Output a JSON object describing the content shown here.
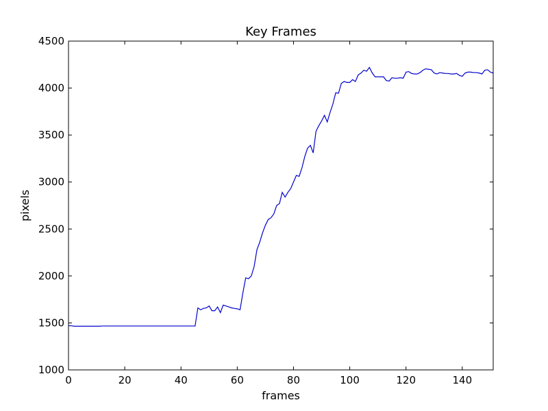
{
  "chart_data": {
    "type": "line",
    "title": "Key Frames",
    "xlabel": "frames",
    "ylabel": "pixels",
    "xlim": [
      0,
      151
    ],
    "ylim": [
      1000,
      4500
    ],
    "xticks": [
      0,
      20,
      40,
      60,
      80,
      100,
      120,
      140
    ],
    "xtick_labels": [
      "0",
      "20",
      "40",
      "60",
      "80",
      "100",
      "120",
      "140"
    ],
    "yticks": [
      1000,
      1500,
      2000,
      2500,
      3000,
      3500,
      4000,
      4500
    ],
    "ytick_labels": [
      "1000",
      "1500",
      "2000",
      "2500",
      "3000",
      "3500",
      "4000",
      "4500"
    ],
    "grid": false,
    "series": [
      {
        "color": "#0000cc",
        "x": [
          0,
          1,
          2,
          3,
          4,
          5,
          6,
          7,
          8,
          9,
          10,
          11,
          12,
          13,
          14,
          15,
          16,
          17,
          18,
          19,
          20,
          21,
          22,
          23,
          24,
          25,
          26,
          27,
          28,
          29,
          30,
          31,
          32,
          33,
          34,
          35,
          36,
          37,
          38,
          39,
          40,
          41,
          42,
          43,
          44,
          45,
          46,
          47,
          48,
          49,
          50,
          51,
          52,
          53,
          54,
          55,
          56,
          57,
          58,
          59,
          60,
          61,
          62,
          63,
          64,
          65,
          66,
          67,
          68,
          69,
          70,
          71,
          72,
          73,
          74,
          75,
          76,
          77,
          78,
          79,
          80,
          81,
          82,
          83,
          84,
          85,
          86,
          87,
          88,
          89,
          90,
          91,
          92,
          93,
          94,
          95,
          96,
          97,
          98,
          99,
          100,
          101,
          102,
          103,
          104,
          105,
          106,
          107,
          108,
          109,
          110,
          111,
          112,
          113,
          114,
          115,
          116,
          117,
          118,
          119,
          120,
          121,
          122,
          123,
          124,
          125,
          126,
          127,
          128,
          129,
          130,
          131,
          132,
          133,
          134,
          135,
          136,
          137,
          138,
          139,
          140,
          141,
          142,
          143,
          144,
          145,
          146,
          147,
          148,
          149,
          150,
          151
        ],
        "y": [
          1470,
          1470,
          1465,
          1465,
          1465,
          1465,
          1465,
          1465,
          1465,
          1465,
          1465,
          1465,
          1467,
          1467,
          1467,
          1467,
          1467,
          1467,
          1467,
          1467,
          1467,
          1467,
          1467,
          1467,
          1467,
          1467,
          1467,
          1467,
          1467,
          1467,
          1467,
          1467,
          1467,
          1467,
          1467,
          1467,
          1467,
          1467,
          1467,
          1467,
          1467,
          1467,
          1467,
          1467,
          1467,
          1467,
          1660,
          1640,
          1655,
          1660,
          1680,
          1630,
          1630,
          1670,
          1610,
          1690,
          1680,
          1670,
          1660,
          1655,
          1650,
          1640,
          1820,
          1980,
          1970,
          2000,
          2100,
          2280,
          2360,
          2460,
          2540,
          2600,
          2620,
          2660,
          2750,
          2770,
          2890,
          2840,
          2890,
          2930,
          3000,
          3070,
          3060,
          3150,
          3270,
          3360,
          3390,
          3310,
          3540,
          3600,
          3650,
          3710,
          3640,
          3740,
          3830,
          3950,
          3945,
          4050,
          4070,
          4060,
          4060,
          4090,
          4070,
          4140,
          4160,
          4190,
          4180,
          4220,
          4160,
          4120,
          4120,
          4120,
          4120,
          4080,
          4075,
          4110,
          4105,
          4105,
          4110,
          4105,
          4170,
          4175,
          4155,
          4150,
          4150,
          4165,
          4190,
          4205,
          4200,
          4195,
          4160,
          4150,
          4165,
          4160,
          4155,
          4155,
          4150,
          4150,
          4155,
          4135,
          4125,
          4160,
          4170,
          4170,
          4165,
          4165,
          4160,
          4150,
          4190,
          4195,
          4170,
          4160
        ]
      }
    ]
  }
}
